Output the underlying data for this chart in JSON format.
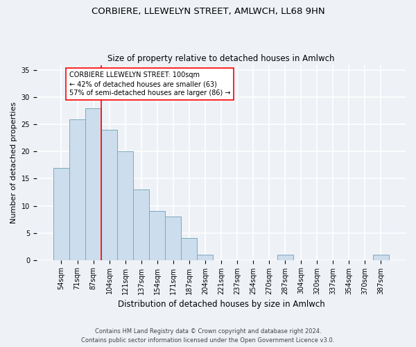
{
  "title1": "CORBIERE, LLEWELYN STREET, AMLWCH, LL68 9HN",
  "title2": "Size of property relative to detached houses in Amlwch",
  "xlabel": "Distribution of detached houses by size in Amlwch",
  "ylabel": "Number of detached properties",
  "categories": [
    "54sqm",
    "71sqm",
    "87sqm",
    "104sqm",
    "121sqm",
    "137sqm",
    "154sqm",
    "171sqm",
    "187sqm",
    "204sqm",
    "221sqm",
    "237sqm",
    "254sqm",
    "270sqm",
    "287sqm",
    "304sqm",
    "320sqm",
    "337sqm",
    "354sqm",
    "370sqm",
    "387sqm"
  ],
  "values": [
    17,
    26,
    28,
    24,
    20,
    13,
    9,
    8,
    4,
    1,
    0,
    0,
    0,
    0,
    1,
    0,
    0,
    0,
    0,
    0,
    1
  ],
  "bar_color": "#ccdded",
  "bar_edge_color": "#7aaabb",
  "vline_color": "red",
  "vline_pos": 2.5,
  "annotation_text": "CORBIERE LLEWELYN STREET: 100sqm\n← 42% of detached houses are smaller (63)\n57% of semi-detached houses are larger (86) →",
  "annotation_box_color": "white",
  "annotation_box_edge": "red",
  "ylim": [
    0,
    36
  ],
  "yticks": [
    0,
    5,
    10,
    15,
    20,
    25,
    30,
    35
  ],
  "footer1": "Contains HM Land Registry data © Crown copyright and database right 2024.",
  "footer2": "Contains public sector information licensed under the Open Government Licence v3.0.",
  "bg_color": "#eef2f7",
  "plot_bg_color": "#eef2f7",
  "grid_color": "#ffffff",
  "title1_fontsize": 9.5,
  "title2_fontsize": 8.5,
  "xlabel_fontsize": 8.5,
  "ylabel_fontsize": 8,
  "tick_fontsize": 7,
  "annot_fontsize": 7,
  "footer_fontsize": 6
}
